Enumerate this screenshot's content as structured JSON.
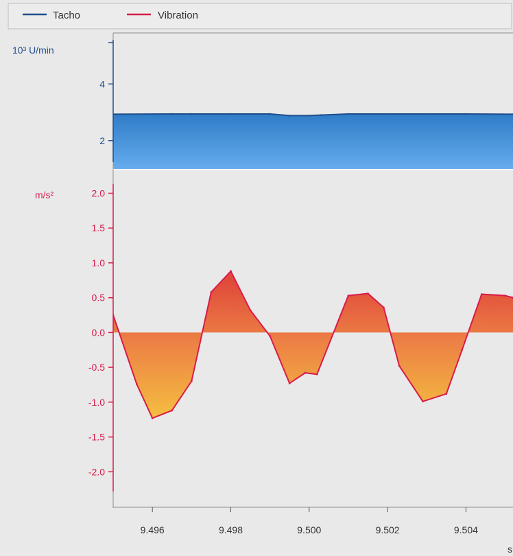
{
  "legend": {
    "items": [
      {
        "label": "Tacho",
        "color": "#1f4e8c"
      },
      {
        "label": "Vibration",
        "color": "#d81b4a"
      }
    ]
  },
  "colors": {
    "tacho_line": "#1f4e8c",
    "tacho_fill_top": "#2f7cc7",
    "tacho_fill_bottom": "#66acee",
    "vib_line": "#d81b4a",
    "vib_fill_pos": "#e04a3a",
    "vib_fill_neg": "#f5c040",
    "axis_tacho": "#1f4e8c",
    "axis_vib": "#d81b4a",
    "background": "#e9e9e9"
  },
  "chart_data": [
    {
      "type": "area",
      "name": "tacho-panel",
      "ylabel": "10³ U/min",
      "ylim": [
        1,
        5.8
      ],
      "yticks": [
        2,
        4
      ],
      "ytick_labels": [
        "2",
        "4"
      ],
      "series": [
        {
          "name": "Tacho",
          "x": [
            9.495,
            9.4965,
            9.497,
            9.498,
            9.499,
            9.4995,
            9.5,
            9.5003,
            9.501,
            9.502,
            9.503,
            9.504,
            9.5052
          ],
          "y": [
            2.93,
            2.94,
            2.94,
            2.94,
            2.94,
            2.88,
            2.88,
            2.9,
            2.94,
            2.94,
            2.94,
            2.94,
            2.93
          ]
        }
      ]
    },
    {
      "type": "area",
      "name": "vibration-panel",
      "ylabel": "m/s²",
      "xlabel": "s",
      "xlim": [
        9.495,
        9.5052
      ],
      "ylim": [
        -2.5,
        2.35
      ],
      "yticks": [
        2.0,
        1.5,
        1.0,
        0.5,
        0.0,
        -0.5,
        -1.0,
        -1.5,
        -2.0
      ],
      "ytick_labels": [
        "2.0",
        "1.5",
        "1.0",
        "0.5",
        "0.0",
        "-0.5",
        "-1.0",
        "-1.5",
        "-2.0"
      ],
      "xticks": [
        9.496,
        9.498,
        9.5,
        9.502,
        9.504
      ],
      "xtick_labels": [
        "9.496",
        "9.498",
        "9.500",
        "9.502",
        "9.504"
      ],
      "series": [
        {
          "name": "Vibration",
          "x": [
            9.495,
            9.4956,
            9.496,
            9.4965,
            9.497,
            9.4975,
            9.498,
            9.4985,
            9.499,
            9.4995,
            9.4999,
            9.5002,
            9.501,
            9.5015,
            9.5019,
            9.5023,
            9.5029,
            9.5035,
            9.5039,
            9.5044,
            9.505,
            9.5052
          ],
          "y": [
            0.25,
            -0.74,
            -1.23,
            -1.12,
            -0.7,
            0.58,
            0.88,
            0.32,
            -0.05,
            -0.73,
            -0.58,
            -0.6,
            0.53,
            0.56,
            0.36,
            -0.48,
            -0.99,
            -0.88,
            -0.25,
            0.55,
            0.53,
            0.5
          ]
        }
      ]
    }
  ]
}
